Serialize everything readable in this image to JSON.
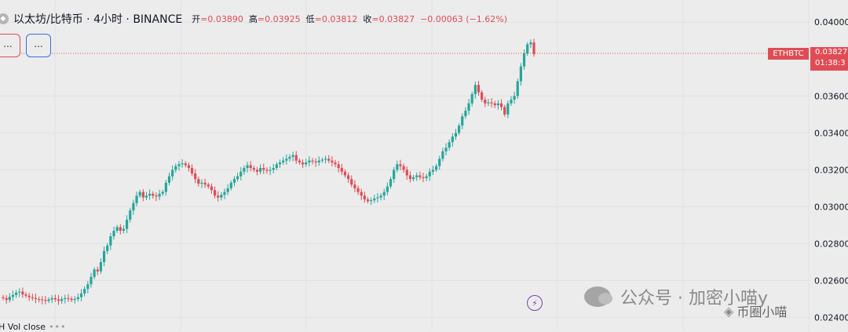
{
  "header": {
    "symbol_icon": "symbol-logo-icon",
    "title": "以太坊/比特币 · 4小时 · BINANCE",
    "open_label": "开",
    "open_value": "=0.03890",
    "high_label": "高",
    "high_value": "=0.03925",
    "low_label": "低",
    "low_value": "=0.03812",
    "close_label": "收",
    "close_value": "=0.03827",
    "change": "−0.00063 (−1.62%)"
  },
  "buttons": {
    "sell": "...",
    "buy": "..."
  },
  "price_scale": {
    "ticker": "ETHBTC",
    "last_price": "0.03827",
    "countdown": "01:38:3"
  },
  "indicator": {
    "label": "H Vol close"
  },
  "watermark": {
    "text": "公众号 · 加密小喵y",
    "text2": "币圈小喵",
    "icon": "wechat-icon"
  },
  "colors": {
    "up": "#26a69a",
    "down": "#e04c55",
    "background": "#ececec",
    "grid": "#e2e2e2"
  },
  "chart_data": {
    "type": "candlestick",
    "symbol": "ETHBTC",
    "interval": "4小时",
    "exchange": "BINANCE",
    "y_ticks": [
      "0.04000",
      "0.03600",
      "0.03400",
      "0.03200",
      "0.03000",
      "0.02800",
      "0.02600",
      "0.02400"
    ],
    "ylim": [
      0.0233,
      0.0412
    ],
    "last_price": 0.03827,
    "closes": [
      0.02505,
      0.02495,
      0.02512,
      0.02522,
      0.02535,
      0.0254,
      0.02525,
      0.02518,
      0.0251,
      0.02505,
      0.025,
      0.02498,
      0.02495,
      0.0249,
      0.02498,
      0.02505,
      0.02498,
      0.0249,
      0.025,
      0.02505,
      0.02502,
      0.02495,
      0.025,
      0.0251,
      0.0253,
      0.02555,
      0.0258,
      0.0262,
      0.0266,
      0.0265,
      0.027,
      0.0276,
      0.0279,
      0.0284,
      0.0287,
      0.0289,
      0.0287,
      0.0288,
      0.0293,
      0.0298,
      0.0302,
      0.0306,
      0.0308,
      0.0305,
      0.0306,
      0.0307,
      0.0306,
      0.03055,
      0.0307,
      0.0308,
      0.0313,
      0.03165,
      0.032,
      0.0322,
      0.0323,
      0.03235,
      0.03225,
      0.0321,
      0.0318,
      0.0315,
      0.03125,
      0.0313,
      0.0312,
      0.0311,
      0.0309,
      0.0306,
      0.0305,
      0.03065,
      0.0308,
      0.031,
      0.0313,
      0.0315,
      0.03165,
      0.0319,
      0.0321,
      0.03225,
      0.0321,
      0.032,
      0.0319,
      0.0321,
      0.032,
      0.03195,
      0.032,
      0.0321,
      0.0323,
      0.0324,
      0.0325,
      0.0326,
      0.0327,
      0.0328,
      0.0325,
      0.0324,
      0.0323,
      0.0324,
      0.0325,
      0.03245,
      0.0324,
      0.0325,
      0.03255,
      0.0326,
      0.0325,
      0.0324,
      0.0323,
      0.0321,
      0.0319,
      0.0317,
      0.0315,
      0.0312,
      0.031,
      0.0308,
      0.0306,
      0.0304,
      0.0303,
      0.03035,
      0.03045,
      0.0305,
      0.0306,
      0.0308,
      0.0311,
      0.0315,
      0.032,
      0.0323,
      0.0322,
      0.032,
      0.0317,
      0.0315,
      0.0316,
      0.0317,
      0.0316,
      0.03155,
      0.03165,
      0.0319,
      0.032,
      0.0322,
      0.0326,
      0.033,
      0.0332,
      0.0335,
      0.0338,
      0.034,
      0.0344,
      0.0349,
      0.0352,
      0.0356,
      0.0361,
      0.0366,
      0.0362,
      0.0358,
      0.0356,
      0.03565,
      0.0356,
      0.0355,
      0.0356,
      0.0354,
      0.035,
      0.0356,
      0.0358,
      0.036,
      0.0368,
      0.0376,
      0.0383,
      0.0388,
      0.0389,
      0.03827
    ]
  }
}
